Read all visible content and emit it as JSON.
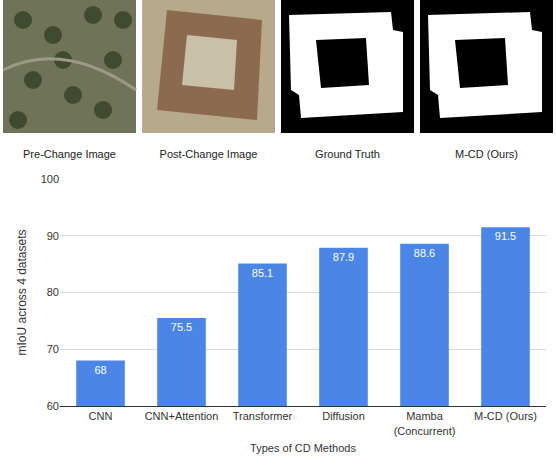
{
  "panels": {
    "captions": [
      "Pre-Change Image",
      "Post-Change Image",
      "Ground Truth",
      "M-CD (Ours)"
    ]
  },
  "chart_data": {
    "type": "bar",
    "categories": [
      "CNN",
      "CNN+Attention",
      "Transformer",
      "Diffusion",
      "Mamba\n(Concurrent)",
      "M-CD (Ours)"
    ],
    "values": [
      68,
      75.5,
      85.1,
      87.9,
      88.6,
      91.5
    ],
    "color": "#4a86e8",
    "xlabel": "Types of CD Methods",
    "ylabel": "mIoU across 4 datasets",
    "ylim": [
      60,
      100
    ],
    "yticks": [
      60,
      70,
      80,
      90,
      100
    ],
    "grid": true,
    "data_labels": true
  }
}
